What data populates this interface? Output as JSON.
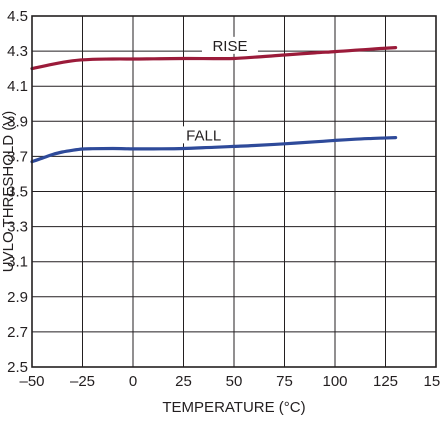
{
  "chart_data": {
    "type": "line",
    "title": "",
    "xlabel": "TEMPERATURE (°C)",
    "ylabel": "UVLO THRESHOLD (V)",
    "xlim": [
      -50,
      150
    ],
    "ylim": [
      2.5,
      4.5
    ],
    "x_ticks": [
      -50,
      -25,
      0,
      25,
      50,
      75,
      100,
      125,
      150
    ],
    "x_tick_labels": [
      "–50",
      "–25",
      "0",
      "25",
      "50",
      "75",
      "100",
      "125",
      "150"
    ],
    "y_ticks": [
      2.5,
      2.7,
      2.9,
      3.1,
      3.3,
      3.5,
      3.7,
      3.9,
      4.1,
      4.3,
      4.5
    ],
    "y_tick_labels": [
      "2.5",
      "2.7",
      "2.9",
      "3.1",
      "3.3",
      "3.5",
      "3.7",
      "3.9",
      "4.1",
      "4.3",
      "4.5"
    ],
    "grid": true,
    "legend": "none",
    "series": [
      {
        "name": "RISE",
        "color": "#9b1b3a",
        "x": [
          -50,
          -40,
          -30,
          -20,
          -10,
          0,
          10,
          25,
          40,
          50,
          60,
          75,
          90,
          100,
          110,
          120,
          130
        ],
        "y": [
          4.2,
          4.225,
          4.245,
          4.253,
          4.255,
          4.255,
          4.256,
          4.258,
          4.257,
          4.258,
          4.265,
          4.278,
          4.29,
          4.297,
          4.305,
          4.313,
          4.32
        ]
      },
      {
        "name": "FALL",
        "color": "#2e4a9a",
        "x": [
          -50,
          -45,
          -40,
          -35,
          -30,
          -25,
          -20,
          -10,
          0,
          10,
          25,
          40,
          50,
          60,
          75,
          90,
          100,
          110,
          120,
          130
        ],
        "y": [
          3.67,
          3.69,
          3.71,
          3.725,
          3.735,
          3.742,
          3.744,
          3.745,
          3.743,
          3.743,
          3.745,
          3.752,
          3.757,
          3.762,
          3.772,
          3.783,
          3.791,
          3.798,
          3.803,
          3.807
        ]
      }
    ],
    "annotations": [
      {
        "text": "RISE",
        "series": "RISE"
      },
      {
        "text": "FALL",
        "series": "FALL"
      }
    ]
  }
}
